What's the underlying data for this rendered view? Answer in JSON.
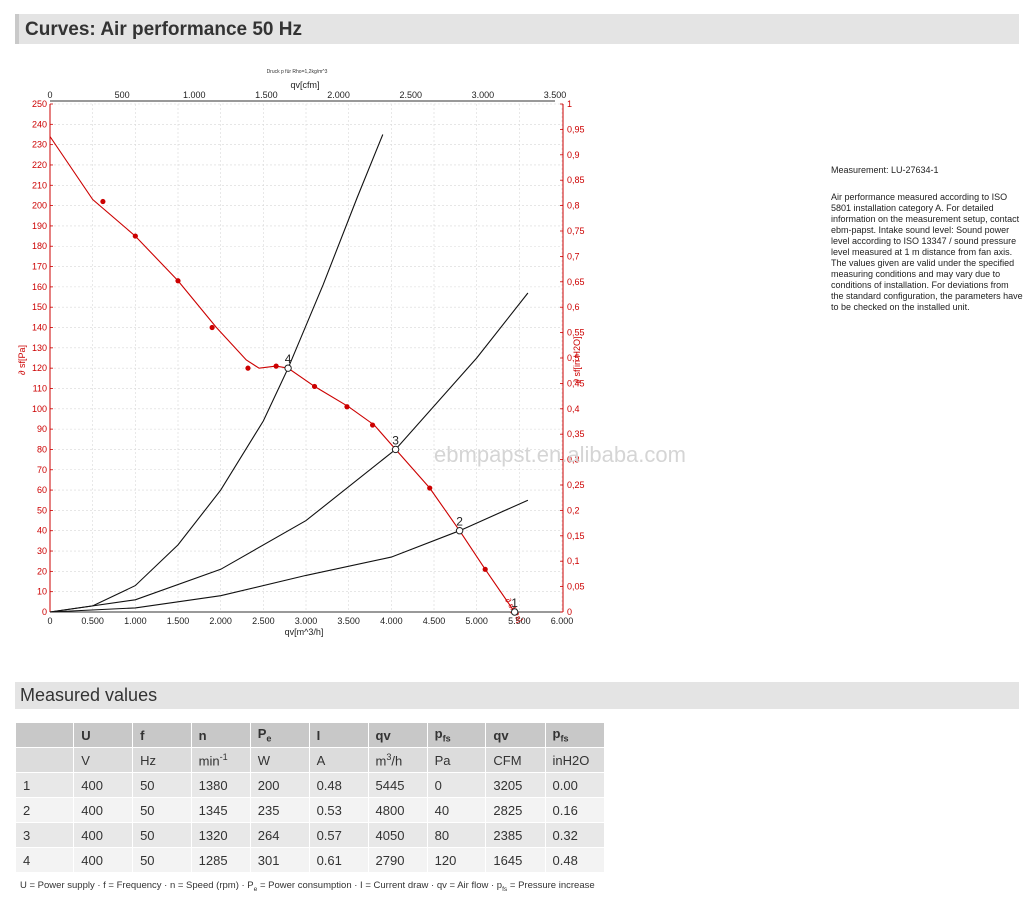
{
  "header": {
    "title": "Curves: Air performance 50 Hz"
  },
  "chart_data": {
    "type": "line",
    "tiny_label": "Druck p für Rho=1,2kg/m^3",
    "x_top": {
      "label": "qv[cfm]",
      "ticks": [
        "0",
        "500",
        "1.000",
        "1.500",
        "2.000",
        "2.500",
        "3.000",
        "3.500"
      ],
      "range": [
        0,
        3500
      ]
    },
    "x_bottom": {
      "label": "qv[m^3/h]",
      "ticks": [
        "0",
        "0.500",
        "1.000",
        "1.500",
        "2.000",
        "2.500",
        "3.000",
        "3.500",
        "4.000",
        "4.500",
        "5.000",
        "5.500",
        "6.000"
      ],
      "range": [
        0,
        6000
      ]
    },
    "y_left": {
      "label": "p_sf[Pa]",
      "label_text": "∂ sf[Pa]",
      "ticks": [
        "0",
        "10",
        "20",
        "30",
        "40",
        "50",
        "60",
        "70",
        "80",
        "90",
        "100",
        "110",
        "120",
        "130",
        "140",
        "150",
        "160",
        "170",
        "180",
        "190",
        "200",
        "210",
        "220",
        "230",
        "240",
        "250"
      ],
      "range": [
        0,
        250
      ]
    },
    "y_right": {
      "label": "p_sf[in H2O]",
      "label_text": "∂ sf[in H2O]",
      "ticks": [
        "0",
        "0,05",
        "0,1",
        "0,15",
        "0,2",
        "0,25",
        "0,3",
        "0,35",
        "0,4",
        "0,45",
        "0,5",
        "0,55",
        "0,6",
        "0,65",
        "0,7",
        "0,75",
        "0,8",
        "0,85",
        "0,9",
        "0,95",
        "1"
      ],
      "range": [
        0,
        1
      ]
    },
    "grid": true,
    "watermark": "ebmpapst.en.alibaba.com",
    "series": [
      {
        "name": "p_sf",
        "color": "#cc0000",
        "x": [
          0,
          500,
          1000,
          1500,
          1950,
          2300,
          2450,
          2650,
          2790,
          3100,
          3500,
          3800,
          4050,
          4450,
          4800,
          5100,
          5445
        ],
        "y": [
          234,
          203,
          185,
          163,
          140,
          124,
          120,
          121,
          120,
          111,
          101,
          92,
          80,
          61,
          40,
          21,
          0
        ],
        "markers_x": [
          620,
          1000,
          1500,
          1900,
          2320,
          2650,
          3100,
          3480,
          3780,
          4450,
          5100
        ],
        "markers_y": [
          202,
          185,
          163,
          140,
          120,
          121,
          111,
          101,
          92,
          61,
          21
        ],
        "label": "∂ sf[Pa]"
      },
      {
        "name": "",
        "color": "#111111",
        "x": [
          0,
          500,
          1000,
          1500,
          2000,
          2500,
          2790,
          3200,
          3600,
          3900
        ],
        "y": [
          0,
          3,
          13,
          33,
          60,
          94,
          120,
          161,
          204,
          235
        ]
      },
      {
        "name": "",
        "color": "#111111",
        "x": [
          0,
          1000,
          2000,
          3000,
          4050,
          5000,
          5600
        ],
        "y": [
          0,
          6,
          21,
          45,
          80,
          125,
          157
        ]
      },
      {
        "name": "",
        "color": "#111111",
        "x": [
          0,
          1000,
          2000,
          3000,
          4000,
          4800,
          5600
        ],
        "y": [
          0,
          2,
          8,
          18,
          27,
          40,
          55
        ]
      }
    ],
    "operating_points": [
      {
        "label": "1",
        "x": 5445,
        "y": 0
      },
      {
        "label": "2",
        "x": 4800,
        "y": 40
      },
      {
        "label": "3",
        "x": 4050,
        "y": 80
      },
      {
        "label": "4",
        "x": 2790,
        "y": 120
      }
    ]
  },
  "side_note": {
    "measurement": "Measurement: LU-27634-1",
    "text": "Air performance measured according to ISO 5801 installation category A. For detailed information on the measurement setup, contact ebm-papst. Intake sound level: Sound power level according to ISO 13347 / sound pressure level measured at 1 m distance from fan axis. The values given are valid under the specified measuring conditions and may vary due to conditions of installation. For deviations from the standard configuration, the parameters have to be checked on the installed unit."
  },
  "measured": {
    "title": "Measured values",
    "headers": [
      "",
      "U",
      "f",
      "n",
      "P",
      "I",
      "qv",
      "p",
      "qv",
      "p"
    ],
    "header_subs": [
      "",
      "",
      "",
      "",
      "e",
      "",
      "",
      "fs",
      "",
      "fs"
    ],
    "units": [
      "",
      "V",
      "Hz",
      "min",
      "W",
      "A",
      "m",
      "Pa",
      "CFM",
      "inH2O"
    ],
    "unit_sups": [
      "",
      "",
      "",
      "-1",
      "",
      "",
      "3",
      "",
      "",
      ""
    ],
    "unit_suffix": [
      "",
      "",
      "",
      "",
      "",
      "",
      "/h",
      "",
      "",
      ""
    ],
    "rows": [
      [
        "1",
        "400",
        "50",
        "1380",
        "200",
        "0.48",
        "5445",
        "0",
        "3205",
        "0.00"
      ],
      [
        "2",
        "400",
        "50",
        "1345",
        "235",
        "0.53",
        "4800",
        "40",
        "2825",
        "0.16"
      ],
      [
        "3",
        "400",
        "50",
        "1320",
        "264",
        "0.57",
        "4050",
        "80",
        "2385",
        "0.32"
      ],
      [
        "4",
        "400",
        "50",
        "1285",
        "301",
        "0.61",
        "2790",
        "120",
        "1645",
        "0.48"
      ]
    ]
  },
  "footnote": {
    "part1": "U = Power supply · f = Frequency · n = Speed (rpm) · P",
    "sub1": "e",
    "part2": " = Power consumption · I = Current draw · qv = Air flow · p",
    "sub2": "fs",
    "part3": " = Pressure increase"
  }
}
